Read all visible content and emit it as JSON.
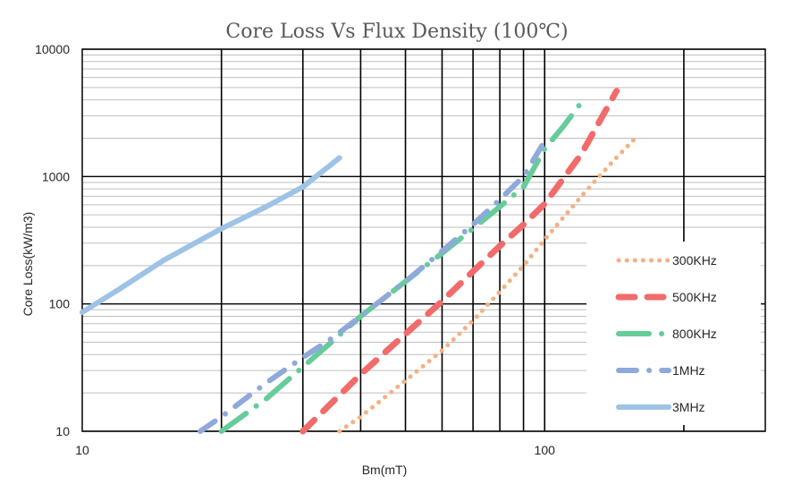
{
  "chart_data": {
    "type": "line",
    "title": "Core Loss Vs Flux Density (100℃)",
    "xlabel": "Bm(mT)",
    "ylabel": "Core Loss(kW/m3)",
    "x_scale": "log",
    "y_scale": "log",
    "xlim": [
      10,
      300
    ],
    "ylim": [
      10,
      10000
    ],
    "x_ticks": [
      "10",
      "100"
    ],
    "y_ticks": [
      "10",
      "100",
      "1000",
      "10000"
    ],
    "grid": true,
    "legend_position": "right",
    "series": [
      {
        "name": "300KHz",
        "color": "#F4B183",
        "line_style": "dotted",
        "points": [
          [
            36,
            10
          ],
          [
            40,
            13
          ],
          [
            50,
            25
          ],
          [
            60,
            43
          ],
          [
            70,
            74
          ],
          [
            80,
            125
          ],
          [
            90,
            200
          ],
          [
            100,
            320
          ],
          [
            120,
            700
          ],
          [
            140,
            1300
          ],
          [
            157,
            2000
          ]
        ]
      },
      {
        "name": "500KHz",
        "color": "#F26B6B",
        "line_style": "dashed",
        "points": [
          [
            30,
            10
          ],
          [
            40,
            28
          ],
          [
            50,
            58
          ],
          [
            60,
            105
          ],
          [
            70,
            180
          ],
          [
            80,
            285
          ],
          [
            90,
            420
          ],
          [
            100,
            610
          ],
          [
            120,
            1500
          ],
          [
            143,
            4700
          ]
        ]
      },
      {
        "name": "800KHz",
        "color": "#66CC99",
        "line_style": "long-dash-dot",
        "points": [
          [
            20,
            10
          ],
          [
            25,
            18
          ],
          [
            30,
            32
          ],
          [
            35,
            52
          ],
          [
            40,
            80
          ],
          [
            50,
            150
          ],
          [
            60,
            250
          ],
          [
            70,
            390
          ],
          [
            80,
            580
          ],
          [
            90,
            830
          ],
          [
            100,
            1650
          ],
          [
            110,
            2500
          ],
          [
            123,
            4300
          ]
        ]
      },
      {
        "name": "1MHz",
        "color": "#8EA9DB",
        "line_style": "dash-dot",
        "points": [
          [
            18,
            10
          ],
          [
            20,
            13
          ],
          [
            25,
            24
          ],
          [
            30,
            38
          ],
          [
            35,
            55
          ],
          [
            40,
            80
          ],
          [
            50,
            150
          ],
          [
            60,
            260
          ],
          [
            70,
            420
          ],
          [
            80,
            660
          ],
          [
            90,
            1000
          ],
          [
            100,
            1900
          ]
        ]
      },
      {
        "name": "3MHz",
        "color": "#9DC3E6",
        "line_style": "solid",
        "points": [
          [
            10,
            86
          ],
          [
            12,
            130
          ],
          [
            15,
            220
          ],
          [
            20,
            390
          ],
          [
            25,
            580
          ],
          [
            30,
            830
          ],
          [
            36,
            1400
          ]
        ]
      }
    ]
  }
}
